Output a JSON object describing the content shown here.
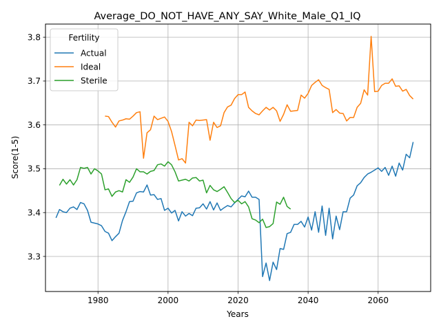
{
  "chart_data": {
    "type": "line",
    "title": "Average_DO_NOT_HAVE_ANY_SAY_White_Male_Q1_IQ",
    "xlabel": "Years",
    "ylabel": "Score(1-5)",
    "xlim": [
      1965,
      2075
    ],
    "ylim": [
      3.22,
      3.83
    ],
    "xticks": [
      1980,
      2000,
      2020,
      2040,
      2060
    ],
    "yticks": [
      3.3,
      3.4,
      3.5,
      3.6,
      3.7,
      3.8
    ],
    "grid": true,
    "legend": {
      "title": "Fertility",
      "position": "top-left"
    },
    "series": [
      {
        "name": "Actual",
        "color": "#1f77b4",
        "x": [
          1968,
          1969,
          1970,
          1971,
          1972,
          1973,
          1974,
          1975,
          1976,
          1977,
          1978,
          1979,
          1980,
          1981,
          1982,
          1983,
          1984,
          1985,
          1986,
          1987,
          1988,
          1989,
          1990,
          1991,
          1992,
          1993,
          1994,
          1995,
          1996,
          1997,
          1998,
          1999,
          2000,
          2001,
          2002,
          2003,
          2004,
          2005,
          2006,
          2007,
          2008,
          2009,
          2010,
          2011,
          2012,
          2013,
          2014,
          2015,
          2016,
          2017,
          2018,
          2019,
          2020,
          2021,
          2022,
          2023,
          2024,
          2025,
          2026,
          2027,
          2028,
          2029,
          2030,
          2031,
          2032,
          2033,
          2034,
          2035,
          2036,
          2037,
          2038,
          2039,
          2040,
          2041,
          2042,
          2043,
          2044,
          2045,
          2046,
          2047,
          2048,
          2049,
          2050,
          2051,
          2052,
          2053,
          2054,
          2055,
          2056,
          2057,
          2058,
          2059,
          2060,
          2061,
          2062,
          2063,
          2064,
          2065,
          2066,
          2067,
          2068,
          2069,
          2070
        ],
        "values": [
          3.388,
          3.407,
          3.402,
          3.4,
          3.41,
          3.413,
          3.407,
          3.423,
          3.42,
          3.405,
          3.378,
          3.376,
          3.374,
          3.37,
          3.357,
          3.353,
          3.336,
          3.345,
          3.353,
          3.382,
          3.402,
          3.425,
          3.426,
          3.445,
          3.448,
          3.447,
          3.463,
          3.44,
          3.441,
          3.43,
          3.432,
          3.405,
          3.41,
          3.399,
          3.405,
          3.381,
          3.402,
          3.392,
          3.398,
          3.393,
          3.41,
          3.411,
          3.42,
          3.408,
          3.425,
          3.406,
          3.422,
          3.405,
          3.411,
          3.416,
          3.413,
          3.422,
          3.43,
          3.438,
          3.436,
          3.449,
          3.435,
          3.435,
          3.43,
          3.254,
          3.285,
          3.245,
          3.287,
          3.27,
          3.318,
          3.316,
          3.352,
          3.355,
          3.373,
          3.373,
          3.38,
          3.367,
          3.39,
          3.36,
          3.402,
          3.355,
          3.415,
          3.348,
          3.41,
          3.34,
          3.392,
          3.361,
          3.402,
          3.402,
          3.433,
          3.44,
          3.461,
          3.468,
          3.48,
          3.488,
          3.492,
          3.497,
          3.502,
          3.494,
          3.503,
          3.485,
          3.506,
          3.483,
          3.513,
          3.497,
          3.533,
          3.525,
          3.561
        ]
      },
      {
        "name": "Ideal",
        "color": "#ff7f0e",
        "x": [
          1982,
          1983,
          1984,
          1985,
          1986,
          1987,
          1988,
          1989,
          1990,
          1991,
          1992,
          1993,
          1994,
          1995,
          1996,
          1997,
          1998,
          1999,
          2000,
          2001,
          2002,
          2003,
          2004,
          2005,
          2006,
          2007,
          2008,
          2009,
          2010,
          2011,
          2012,
          2013,
          2014,
          2015,
          2016,
          2017,
          2018,
          2019,
          2020,
          2021,
          2022,
          2023,
          2024,
          2025,
          2026,
          2027,
          2028,
          2029,
          2030,
          2031,
          2032,
          2033,
          2034,
          2035,
          2036,
          2037,
          2038,
          2039,
          2040,
          2041,
          2042,
          2043,
          2044,
          2045,
          2046,
          2047,
          2048,
          2049,
          2050,
          2051,
          2052,
          2053,
          2054,
          2055,
          2056,
          2057,
          2058,
          2059,
          2060,
          2061,
          2062,
          2063,
          2064,
          2065,
          2066,
          2067,
          2068,
          2069,
          2070
        ],
        "values": [
          3.62,
          3.619,
          3.606,
          3.595,
          3.609,
          3.611,
          3.614,
          3.613,
          3.62,
          3.628,
          3.63,
          3.524,
          3.582,
          3.589,
          3.62,
          3.612,
          3.615,
          3.618,
          3.608,
          3.585,
          3.553,
          3.52,
          3.523,
          3.513,
          3.606,
          3.598,
          3.611,
          3.61,
          3.611,
          3.612,
          3.565,
          3.606,
          3.594,
          3.598,
          3.628,
          3.641,
          3.645,
          3.66,
          3.669,
          3.669,
          3.675,
          3.64,
          3.632,
          3.626,
          3.623,
          3.632,
          3.64,
          3.634,
          3.64,
          3.632,
          3.608,
          3.624,
          3.646,
          3.631,
          3.632,
          3.633,
          3.668,
          3.661,
          3.672,
          3.69,
          3.697,
          3.703,
          3.69,
          3.685,
          3.681,
          3.628,
          3.635,
          3.627,
          3.626,
          3.609,
          3.617,
          3.617,
          3.64,
          3.649,
          3.68,
          3.668,
          3.802,
          3.676,
          3.677,
          3.69,
          3.695,
          3.695,
          3.705,
          3.688,
          3.689,
          3.677,
          3.681,
          3.667,
          3.659
        ]
      },
      {
        "name": "Sterile",
        "color": "#2ca02c",
        "x": [
          1969,
          1970,
          1971,
          1972,
          1973,
          1974,
          1975,
          1976,
          1977,
          1978,
          1979,
          1980,
          1981,
          1982,
          1983,
          1984,
          1985,
          1986,
          1987,
          1988,
          1989,
          1990,
          1991,
          1992,
          1993,
          1994,
          1995,
          1996,
          1997,
          1998,
          1999,
          2000,
          2001,
          2002,
          2003,
          2004,
          2005,
          2006,
          2007,
          2008,
          2009,
          2010,
          2011,
          2012,
          2013,
          2014,
          2015,
          2016,
          2017,
          2018,
          2019,
          2020,
          2021,
          2022,
          2023,
          2024,
          2025,
          2026,
          2027,
          2028,
          2029,
          2030,
          2031,
          2032,
          2033,
          2034,
          2035
        ],
        "values": [
          3.462,
          3.476,
          3.465,
          3.475,
          3.463,
          3.475,
          3.503,
          3.501,
          3.503,
          3.488,
          3.5,
          3.495,
          3.488,
          3.452,
          3.454,
          3.437,
          3.447,
          3.45,
          3.447,
          3.475,
          3.469,
          3.481,
          3.5,
          3.493,
          3.493,
          3.488,
          3.494,
          3.496,
          3.509,
          3.511,
          3.506,
          3.516,
          3.509,
          3.493,
          3.472,
          3.474,
          3.476,
          3.472,
          3.479,
          3.48,
          3.472,
          3.474,
          3.445,
          3.462,
          3.452,
          3.448,
          3.453,
          3.459,
          3.446,
          3.432,
          3.423,
          3.428,
          3.42,
          3.425,
          3.413,
          3.386,
          3.383,
          3.377,
          3.385,
          3.366,
          3.368,
          3.375,
          3.424,
          3.419,
          3.435,
          3.414,
          3.408
        ]
      }
    ]
  }
}
